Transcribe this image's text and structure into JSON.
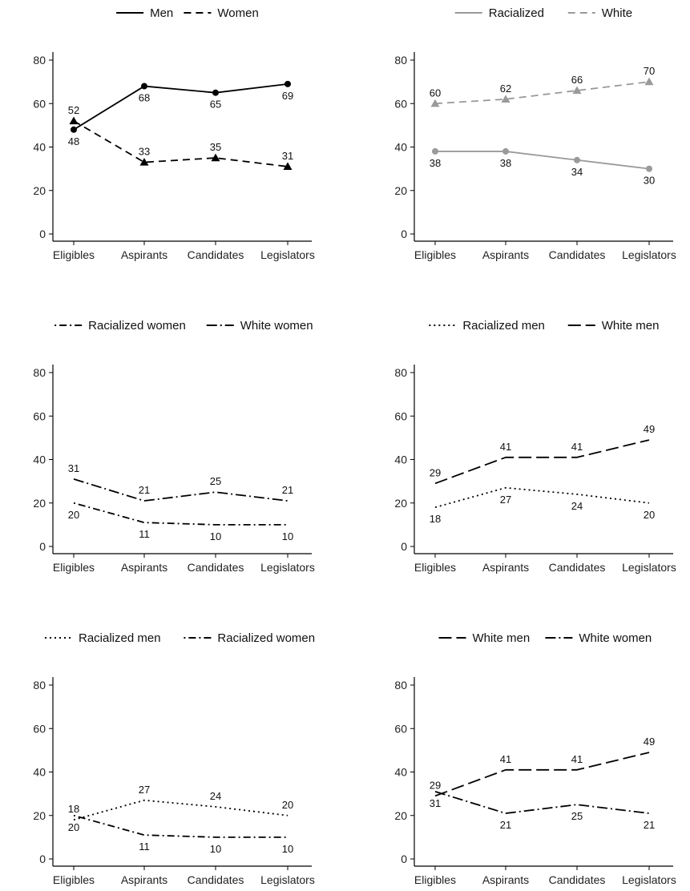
{
  "chart_data": [
    {
      "type": "line",
      "categories": [
        "Eligibles",
        "Aspirants",
        "Candidates",
        "Legislators"
      ],
      "ylim": [
        0,
        80
      ],
      "yticks": [
        0,
        20,
        40,
        60,
        80
      ],
      "legend_position": "top",
      "series": [
        {
          "name": "Men",
          "values": [
            48,
            68,
            65,
            69
          ],
          "color": "#000000",
          "dash": "solid",
          "marker": "circle",
          "label_pos": [
            "below",
            "below",
            "below",
            "below"
          ]
        },
        {
          "name": "Women",
          "values": [
            52,
            33,
            35,
            31
          ],
          "color": "#000000",
          "dash": "dashed",
          "marker": "triangle",
          "label_pos": [
            "above",
            "above",
            "above",
            "above"
          ]
        }
      ]
    },
    {
      "type": "line",
      "categories": [
        "Eligibles",
        "Aspirants",
        "Candidates",
        "Legislators"
      ],
      "ylim": [
        0,
        80
      ],
      "yticks": [
        0,
        20,
        40,
        60,
        80
      ],
      "legend_position": "top",
      "series": [
        {
          "name": "Racialized",
          "values": [
            38,
            38,
            34,
            30
          ],
          "color": "#9a9a9a",
          "dash": "solid",
          "marker": "circle",
          "label_pos": [
            "below",
            "below",
            "below",
            "below"
          ]
        },
        {
          "name": "White",
          "values": [
            60,
            62,
            66,
            70
          ],
          "color": "#9a9a9a",
          "dash": "dashed",
          "marker": "triangle",
          "label_pos": [
            "above",
            "above",
            "above",
            "above"
          ]
        }
      ]
    },
    {
      "type": "line",
      "categories": [
        "Eligibles",
        "Aspirants",
        "Candidates",
        "Legislators"
      ],
      "ylim": [
        0,
        80
      ],
      "yticks": [
        0,
        20,
        40,
        60,
        80
      ],
      "legend_position": "top",
      "series": [
        {
          "name": "Racialized women",
          "values": [
            20,
            11,
            10,
            10
          ],
          "color": "#000000",
          "dash": "dotdash",
          "marker": "none",
          "label_pos": [
            "below",
            "below",
            "below",
            "below"
          ]
        },
        {
          "name": "White women",
          "values": [
            31,
            21,
            25,
            21
          ],
          "color": "#000000",
          "dash": "longdash-dot",
          "marker": "none",
          "label_pos": [
            "above",
            "above",
            "above",
            "above"
          ]
        }
      ]
    },
    {
      "type": "line",
      "categories": [
        "Eligibles",
        "Aspirants",
        "Candidates",
        "Legislators"
      ],
      "ylim": [
        0,
        80
      ],
      "yticks": [
        0,
        20,
        40,
        60,
        80
      ],
      "legend_position": "top",
      "series": [
        {
          "name": "Racialized men",
          "values": [
            18,
            27,
            24,
            20
          ],
          "color": "#000000",
          "dash": "dotted",
          "marker": "none",
          "label_pos": [
            "below",
            "below",
            "below",
            "below"
          ]
        },
        {
          "name": "White men",
          "values": [
            29,
            41,
            41,
            49
          ],
          "color": "#000000",
          "dash": "longdash",
          "marker": "none",
          "label_pos": [
            "above",
            "above",
            "above",
            "above"
          ]
        }
      ]
    },
    {
      "type": "line",
      "categories": [
        "Eligibles",
        "Aspirants",
        "Candidates",
        "Legislators"
      ],
      "ylim": [
        0,
        80
      ],
      "yticks": [
        0,
        20,
        40,
        60,
        80
      ],
      "legend_position": "top",
      "series": [
        {
          "name": "Racialized men",
          "values": [
            18,
            27,
            24,
            20
          ],
          "color": "#000000",
          "dash": "dotted",
          "marker": "none",
          "label_pos": [
            "above",
            "above",
            "above",
            "above"
          ]
        },
        {
          "name": "Racialized women",
          "values": [
            20,
            11,
            10,
            10
          ],
          "color": "#000000",
          "dash": "dotdash",
          "marker": "none",
          "label_pos": [
            "below",
            "below",
            "below",
            "below"
          ]
        }
      ]
    },
    {
      "type": "line",
      "categories": [
        "Eligibles",
        "Aspirants",
        "Candidates",
        "Legislators"
      ],
      "ylim": [
        0,
        80
      ],
      "yticks": [
        0,
        20,
        40,
        60,
        80
      ],
      "legend_position": "top",
      "series": [
        {
          "name": "White men",
          "values": [
            29,
            41,
            41,
            49
          ],
          "color": "#000000",
          "dash": "longdash",
          "marker": "none",
          "label_pos": [
            "above",
            "above",
            "above",
            "above"
          ]
        },
        {
          "name": "White women",
          "values": [
            31,
            21,
            25,
            21
          ],
          "color": "#000000",
          "dash": "longdash-dot",
          "marker": "none",
          "label_pos": [
            "below",
            "below",
            "below",
            "below"
          ]
        }
      ]
    }
  ]
}
